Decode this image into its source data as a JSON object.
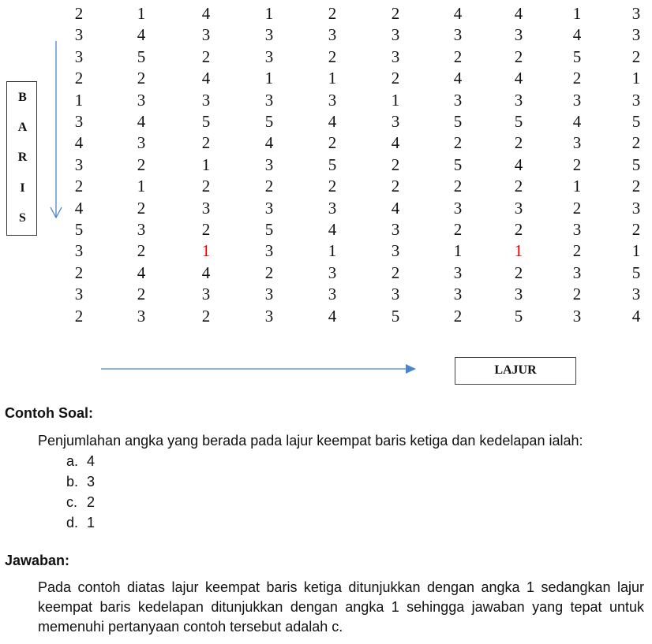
{
  "grid": {
    "rows": [
      [
        "2",
        "1",
        "4",
        "1",
        "2",
        "2",
        "4",
        "4",
        "1",
        "3"
      ],
      [
        "3",
        "4",
        "3",
        "3",
        "3",
        "3",
        "3",
        "3",
        "4",
        "3"
      ],
      [
        "3",
        "5",
        "2",
        "3",
        "2",
        "3",
        "2",
        "2",
        "5",
        "2"
      ],
      [
        "2",
        "2",
        "4",
        "1",
        "1",
        "2",
        "4",
        "4",
        "2",
        "1"
      ],
      [
        "1",
        "3",
        "3",
        "3",
        "3",
        "1",
        "3",
        "3",
        "3",
        "3"
      ],
      [
        "3",
        "4",
        "5",
        "5",
        "4",
        "3",
        "5",
        "5",
        "4",
        "5"
      ],
      [
        "4",
        "3",
        "2",
        "4",
        "2",
        "4",
        "2",
        "2",
        "3",
        "2"
      ],
      [
        "3",
        "2",
        "1",
        "3",
        "5",
        "2",
        "5",
        "4",
        "2",
        "5"
      ],
      [
        "2",
        "1",
        "2",
        "2",
        "2",
        "2",
        "2",
        "2",
        "1",
        "2"
      ],
      [
        "4",
        "2",
        "3",
        "3",
        "3",
        "4",
        "3",
        "3",
        "2",
        "3"
      ],
      [
        "5",
        "3",
        "2",
        "5",
        "4",
        "3",
        "2",
        "2",
        "3",
        "2"
      ],
      [
        "3",
        "2",
        "1",
        "3",
        "1",
        "3",
        "1",
        "1",
        "2",
        "1"
      ],
      [
        "2",
        "4",
        "4",
        "2",
        "3",
        "2",
        "3",
        "2",
        "3",
        "5"
      ],
      [
        "3",
        "2",
        "3",
        "3",
        "3",
        "3",
        "3",
        "3",
        "2",
        "3"
      ],
      [
        "2",
        "3",
        "2",
        "3",
        "4",
        "5",
        "2",
        "5",
        "3",
        "4"
      ]
    ],
    "highlighted": [
      [
        11,
        2
      ],
      [
        11,
        7
      ]
    ],
    "highlight_color": "#e00000"
  },
  "labels": {
    "baris": [
      "B",
      "A",
      "R",
      "I",
      "S"
    ],
    "lajur": "LAJUR"
  },
  "colors": {
    "arrow": "#4a86c8"
  },
  "example": {
    "heading": "Contoh Soal:",
    "question": "Penjumlahan angka yang berada pada lajur keempat baris ketiga dan kedelapan ialah:",
    "options": [
      {
        "label": "a.",
        "value": "4"
      },
      {
        "label": "b.",
        "value": "3"
      },
      {
        "label": "c.",
        "value": "2"
      },
      {
        "label": "d.",
        "value": "1"
      }
    ]
  },
  "answer": {
    "heading": "Jawaban:",
    "text": "Pada contoh diatas lajur keempat baris ketiga ditunjukkan dengan angka 1 sedangkan lajur keempat baris kedelapan ditunjukkan dengan angka 1 sehingga jawaban yang tepat untuk memenuhi pertanyaan contoh tersebut adalah c."
  }
}
